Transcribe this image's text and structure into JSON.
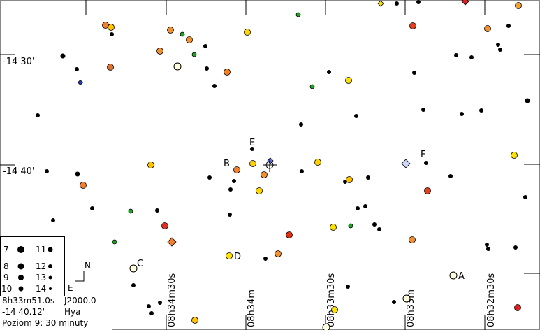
{
  "axis": {
    "dec_labels": [
      "-14 30'",
      "-14 40'"
    ],
    "ra_labels": [
      "08h34m30s",
      "08h34m",
      "08h33m30s",
      "08h33m",
      "08h32m30s"
    ]
  },
  "markers": [
    "A",
    "B",
    "C",
    "D",
    "E",
    "F"
  ],
  "legend": {
    "magnitudes": [
      "7",
      "8",
      "9",
      "10",
      "11",
      "12",
      "13",
      "14"
    ]
  },
  "compass": {
    "north": "N",
    "east": "E"
  },
  "info": {
    "ra": "8h33m51.0s",
    "epoch": "J2000.0",
    "dec": "-14 40.12'",
    "constellation": "Hya",
    "level": "Poziom 9: 30 minuty"
  }
}
